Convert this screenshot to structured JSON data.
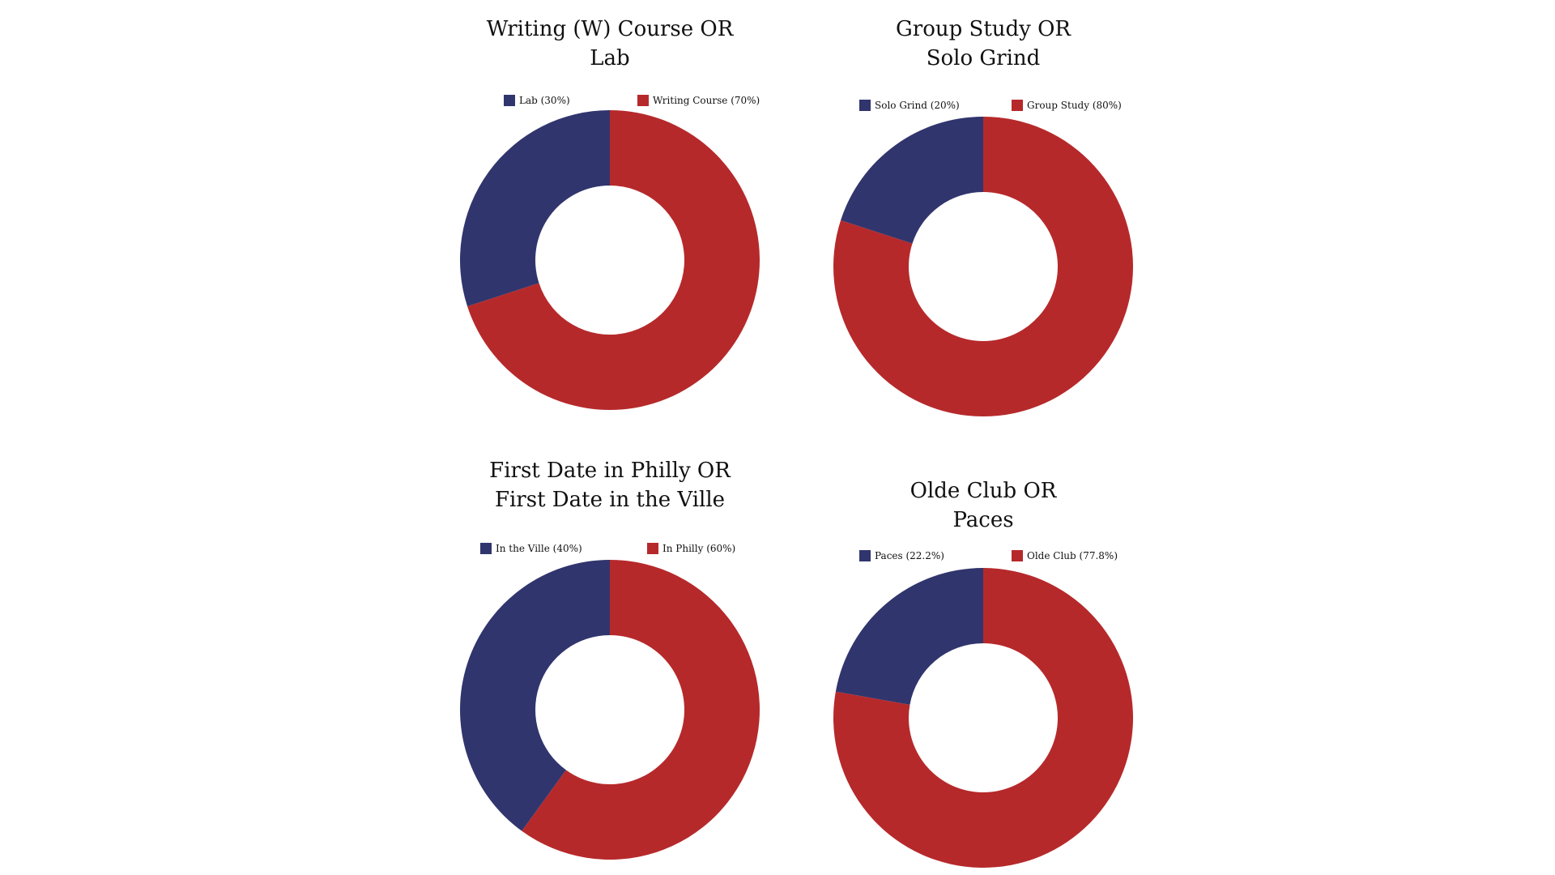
{
  "colors": {
    "navy": "#31356d",
    "red": "#b6292b",
    "background": "#ffffff"
  },
  "chart_data": [
    {
      "type": "pie",
      "style": "donut",
      "title_lines": [
        "Writing (W) Course OR",
        "Lab"
      ],
      "legend": [
        {
          "label": "Lab (30%)",
          "color": "#31356d"
        },
        {
          "label": "Writing Course (70%)",
          "color": "#b6292b"
        }
      ],
      "slices": [
        {
          "name": "Writing Course",
          "value": 70,
          "color": "#b6292b"
        },
        {
          "name": "Lab",
          "value": 30,
          "color": "#31356d"
        }
      ],
      "legend_position": "top"
    },
    {
      "type": "pie",
      "style": "donut",
      "title_lines": [
        "Group Study OR",
        "Solo Grind"
      ],
      "legend": [
        {
          "label": "Solo Grind (20%)",
          "color": "#31356d"
        },
        {
          "label": "Group Study (80%)",
          "color": "#b6292b"
        }
      ],
      "slices": [
        {
          "name": "Group Study",
          "value": 80,
          "color": "#b6292b"
        },
        {
          "name": "Solo Grind",
          "value": 20,
          "color": "#31356d"
        }
      ],
      "legend_position": "top"
    },
    {
      "type": "pie",
      "style": "donut",
      "title_lines": [
        "First Date in Philly OR",
        "First Date in the Ville"
      ],
      "legend": [
        {
          "label": "In the Ville (40%)",
          "color": "#31356d"
        },
        {
          "label": "In Philly (60%)",
          "color": "#b6292b"
        }
      ],
      "slices": [
        {
          "name": "In Philly",
          "value": 60,
          "color": "#b6292b"
        },
        {
          "name": "In the Ville",
          "value": 40,
          "color": "#31356d"
        }
      ],
      "legend_position": "top"
    },
    {
      "type": "pie",
      "style": "donut",
      "title_lines": [
        "Olde Club OR",
        "Paces"
      ],
      "legend": [
        {
          "label": "Paces (22.2%)",
          "color": "#31356d"
        },
        {
          "label": "Olde Club (77.8%)",
          "color": "#b6292b"
        }
      ],
      "slices": [
        {
          "name": "Olde Club",
          "value": 77.8,
          "color": "#b6292b"
        },
        {
          "name": "Paces",
          "value": 22.2,
          "color": "#31356d"
        }
      ],
      "legend_position": "top"
    }
  ]
}
